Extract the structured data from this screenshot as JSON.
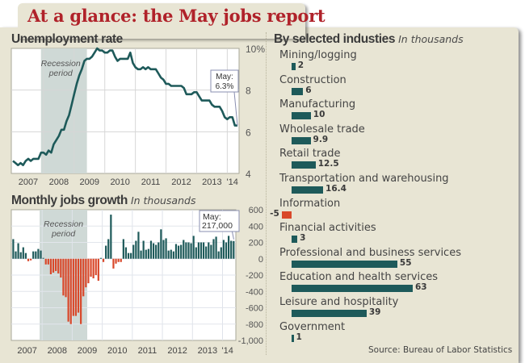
{
  "title": "At a glance: the May jobs report",
  "colors": {
    "teal": "#1e5a5a",
    "red": "#d9482a",
    "title_red": "#b0222a",
    "recession": "#cfd9d6"
  },
  "source": "Source: Bureau of Labor Statistics",
  "chart_data": [
    {
      "type": "line",
      "title": "Unemployment rate",
      "xlabel": "",
      "ylabel": "",
      "ylim": [
        4,
        10
      ],
      "y_ticks": [
        "10%",
        "8",
        "6",
        "4"
      ],
      "y_tick_values": [
        10,
        8,
        6,
        4
      ],
      "x_ticks": [
        "2007",
        "2008",
        "2009",
        "2010",
        "2011",
        "2012",
        "2013",
        "'14"
      ],
      "recession_label": "Recession\nperiod",
      "recession_range": [
        "2007-12",
        "2009-06"
      ],
      "annotation": {
        "line1": "May:",
        "line2": "6.3%"
      },
      "start": "2007-01",
      "values": [
        4.6,
        4.5,
        4.4,
        4.5,
        4.4,
        4.6,
        4.7,
        4.6,
        4.7,
        4.7,
        4.7,
        5.0,
        5.0,
        4.9,
        5.1,
        5.0,
        5.4,
        5.6,
        5.8,
        6.1,
        6.1,
        6.5,
        6.8,
        7.3,
        7.8,
        8.3,
        8.7,
        9.0,
        9.4,
        9.5,
        9.5,
        9.6,
        9.8,
        10.0,
        9.9,
        9.9,
        9.8,
        9.8,
        9.9,
        9.9,
        9.6,
        9.4,
        9.5,
        9.5,
        9.5,
        9.5,
        9.8,
        9.3,
        9.1,
        9.0,
        9.0,
        9.1,
        9.0,
        9.1,
        9.0,
        9.0,
        9.0,
        8.8,
        8.6,
        8.5,
        8.3,
        8.3,
        8.2,
        8.2,
        8.2,
        8.2,
        8.2,
        8.1,
        7.8,
        7.8,
        7.8,
        7.9,
        7.9,
        7.7,
        7.5,
        7.5,
        7.5,
        7.5,
        7.3,
        7.2,
        7.2,
        7.2,
        7.0,
        6.7,
        6.6,
        6.7,
        6.7,
        6.3,
        6.3
      ],
      "color": "#1e5a5a"
    },
    {
      "type": "bar",
      "title": "Monthly jobs growth",
      "subtitle": "In thousands",
      "ylim": [
        -1000,
        600
      ],
      "y_ticks": [
        "600",
        "400",
        "200",
        "0",
        "-200",
        "-400",
        "-600",
        "-800",
        "-1,000"
      ],
      "y_tick_values": [
        600,
        400,
        200,
        0,
        -200,
        -400,
        -600,
        -800,
        -1000
      ],
      "x_ticks": [
        "2007",
        "2008",
        "2009",
        "2010",
        "2011",
        "2012",
        "2013",
        "'14"
      ],
      "recession_label": "Recession\nperiod",
      "recession_range": [
        "2007-12",
        "2009-06"
      ],
      "annotation": {
        "line1": "May:",
        "line2": "217,000"
      },
      "start": "2007-01",
      "values": [
        240,
        90,
        190,
        80,
        140,
        70,
        -30,
        -20,
        90,
        90,
        120,
        100,
        10,
        -70,
        -70,
        -190,
        -170,
        -150,
        -180,
        -230,
        -450,
        -470,
        -770,
        -800,
        -700,
        -700,
        -660,
        -800,
        -460,
        -350,
        -300,
        -220,
        -240,
        -200,
        -270,
        10,
        -40,
        160,
        240,
        540,
        -120,
        -60,
        -40,
        -40,
        240,
        140,
        70,
        70,
        170,
        220,
        330,
        100,
        220,
        110,
        120,
        220,
        190,
        170,
        200,
        360,
        230,
        250,
        100,
        110,
        90,
        180,
        160,
        170,
        230,
        200,
        200,
        190,
        280,
        140,
        200,
        200,
        200,
        150,
        200,
        170,
        240,
        270,
        90,
        140,
        230,
        200,
        280,
        220,
        217
      ],
      "positive_color": "#1e5a5a",
      "negative_color": "#d9482a"
    },
    {
      "type": "bar",
      "title": "By selected industies",
      "subtitle": "In thousands",
      "orientation": "horizontal",
      "categories": [
        "Mining/logging",
        "Construction",
        "Manufacturing",
        "Wholesale trade",
        "Retail trade",
        "Transportation and warehousing",
        "Information",
        "Financial activities",
        "Professional and business services",
        "Education and health services",
        "Leisure and hospitality",
        "Government"
      ],
      "values": [
        2,
        6,
        10,
        9.9,
        12.5,
        16.4,
        -5,
        3,
        55,
        63,
        39,
        1
      ],
      "value_labels": [
        "2",
        "6",
        "10",
        "9.9",
        "12.5",
        "16.4",
        "-5",
        "3",
        "55",
        "63",
        "39",
        "1"
      ]
    }
  ]
}
